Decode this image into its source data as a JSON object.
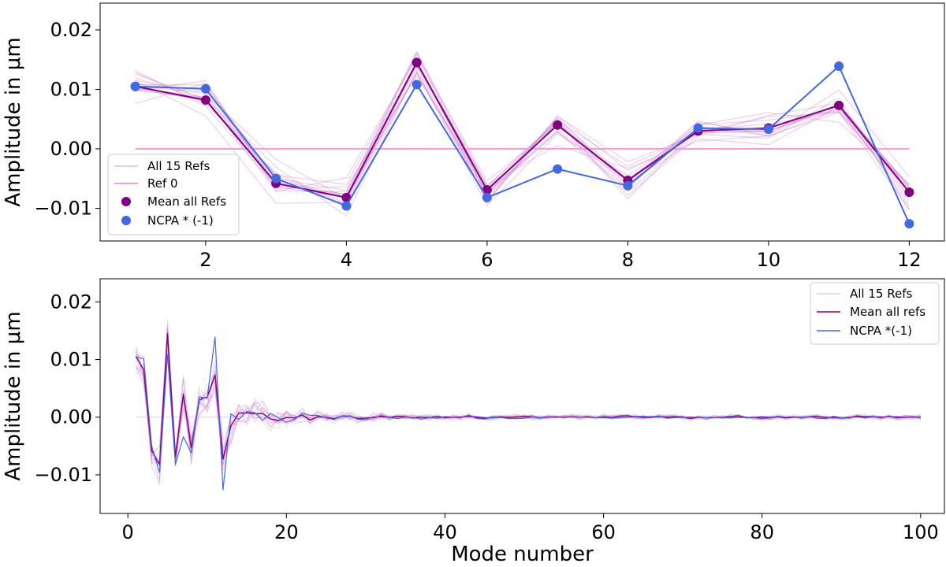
{
  "chart_data": [
    {
      "type": "line",
      "panel": "top",
      "title": "",
      "xlabel": "",
      "ylabel": "Amplitude in μm",
      "xlim": [
        0.5,
        12.5
      ],
      "ylim": [
        -0.0155,
        0.0245
      ],
      "x_ticks": [
        2,
        4,
        6,
        8,
        10,
        12
      ],
      "x_tick_labels": [
        "2",
        "4",
        "6",
        "8",
        "10",
        "12"
      ],
      "y_ticks": [
        -0.01,
        0.0,
        0.01,
        0.02
      ],
      "y_tick_labels": [
        "−0.01",
        "0.00",
        "0.01",
        "0.02"
      ],
      "grid": false,
      "legend_position": "lower-left",
      "legend": [
        "All 15 Refs",
        "Ref 0",
        "Mean all Refs",
        "NCPA * (-1)"
      ],
      "x": [
        1,
        2,
        3,
        4,
        5,
        6,
        7,
        8,
        9,
        10,
        11,
        12
      ],
      "series": [
        {
          "name": "Ref 0",
          "color": "#ee9ee0",
          "values": [
            0,
            0,
            0,
            0,
            0,
            0,
            0,
            0,
            0,
            0,
            0,
            0
          ]
        },
        {
          "name": "Mean all Refs",
          "color": "#800080",
          "values": [
            0.0105,
            0.0082,
            -0.0058,
            -0.0082,
            0.0145,
            -0.0069,
            0.004,
            -0.0053,
            0.003,
            0.0035,
            0.0073,
            -0.0073
          ]
        },
        {
          "name": "NCPA * (-1)",
          "color": "#4169e1",
          "values": [
            0.0105,
            0.0101,
            -0.005,
            -0.0096,
            0.0108,
            -0.0082,
            -0.0034,
            -0.0062,
            0.0035,
            0.0033,
            0.0139,
            -0.0126
          ]
        }
      ]
    },
    {
      "type": "line",
      "panel": "bottom",
      "title": "",
      "xlabel": "Mode number",
      "ylabel": "Amplitude in μm",
      "xlim": [
        -3.5,
        103
      ],
      "ylim": [
        -0.0167,
        0.024
      ],
      "x_ticks": [
        0,
        20,
        40,
        60,
        80,
        100
      ],
      "x_tick_labels": [
        "0",
        "20",
        "40",
        "60",
        "80",
        "100"
      ],
      "y_ticks": [
        -0.01,
        0.0,
        0.01,
        0.02
      ],
      "y_tick_labels": [
        "−0.01",
        "0.00",
        "0.01",
        "0.02"
      ],
      "grid": false,
      "legend_position": "upper-right",
      "legend": [
        "All 15 Refs",
        "Mean all refs",
        "NCPA *(-1)"
      ],
      "series": [
        {
          "name": "Mean all refs",
          "color": "#800080"
        },
        {
          "name": "NCPA *(-1)",
          "color": "#4169e1"
        }
      ]
    }
  ]
}
